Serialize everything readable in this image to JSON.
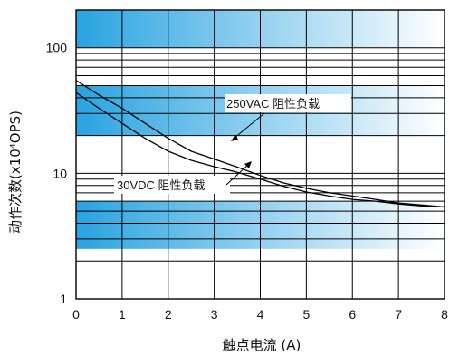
{
  "chart_data": {
    "type": "line",
    "xlabel": "触点电流 (A)",
    "ylabel": "动作次数(x10⁴OPS)",
    "x_ticks": [
      "0",
      "1",
      "2",
      "3",
      "4",
      "5",
      "6",
      "7",
      "8"
    ],
    "y_ticks": [
      "1",
      "10",
      "100"
    ],
    "xlim": [
      0,
      8
    ],
    "ylim": [
      1,
      200
    ],
    "y_scale": "log",
    "grid": true,
    "band_color": "#29a3e0",
    "series": [
      {
        "name": "250VAC 阻性负载",
        "x": [
          0,
          0.5,
          1,
          1.5,
          2,
          2.5,
          3,
          3.5,
          4,
          4.5,
          5,
          5.5,
          6,
          6.5,
          7,
          7.5,
          8
        ],
        "y": [
          55,
          42,
          33,
          25,
          19,
          15,
          13,
          11.2,
          9.6,
          8.4,
          7.6,
          7.0,
          6.6,
          6.2,
          5.8,
          5.6,
          5.4
        ]
      },
      {
        "name": "30VDC 阻性负载",
        "x": [
          0,
          0.5,
          1,
          1.5,
          2,
          2.5,
          3,
          3.5,
          4,
          4.5,
          5,
          5.5,
          6,
          6.5,
          7,
          7.5,
          8
        ],
        "y": [
          44,
          33,
          25,
          19,
          15,
          12.7,
          11.3,
          10.2,
          9.0,
          7.9,
          7.1,
          6.6,
          6.2,
          6.0,
          5.7,
          5.5,
          5.4
        ]
      }
    ]
  }
}
